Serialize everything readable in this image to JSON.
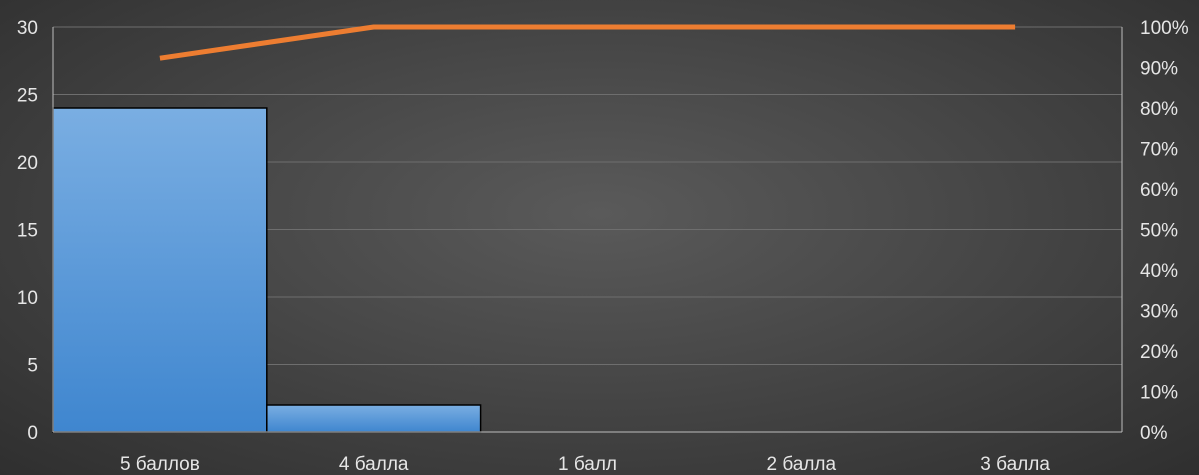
{
  "chart_data": {
    "type": "bar",
    "categories": [
      "5 баллов",
      "4 балла",
      "1 балл",
      "2 балла",
      "3 балла"
    ],
    "series": [
      {
        "type": "bar",
        "axis": "left",
        "values": [
          24,
          2,
          0,
          0,
          0
        ]
      },
      {
        "type": "line",
        "axis": "right",
        "values": [
          92.3,
          100,
          100,
          100,
          100
        ]
      }
    ],
    "title": "",
    "xlabel": "",
    "ylabel": "",
    "y_left": {
      "ylim": [
        0,
        30
      ],
      "ticks": [
        "0",
        "5",
        "10",
        "15",
        "20",
        "25",
        "30"
      ]
    },
    "y_right": {
      "ylim": [
        0,
        100
      ],
      "ticks": [
        "0%",
        "10%",
        "20%",
        "30%",
        "40%",
        "50%",
        "60%",
        "70%",
        "80%",
        "90%",
        "100%"
      ]
    },
    "grid": true,
    "colors": {
      "bar_fill_top": "#7aaee2",
      "bar_fill_bottom": "#3f86cf",
      "bar_edge": "#000000",
      "line": "#ed7d31",
      "grid": "#6e6e6e",
      "text": "#e6e6e6"
    }
  }
}
